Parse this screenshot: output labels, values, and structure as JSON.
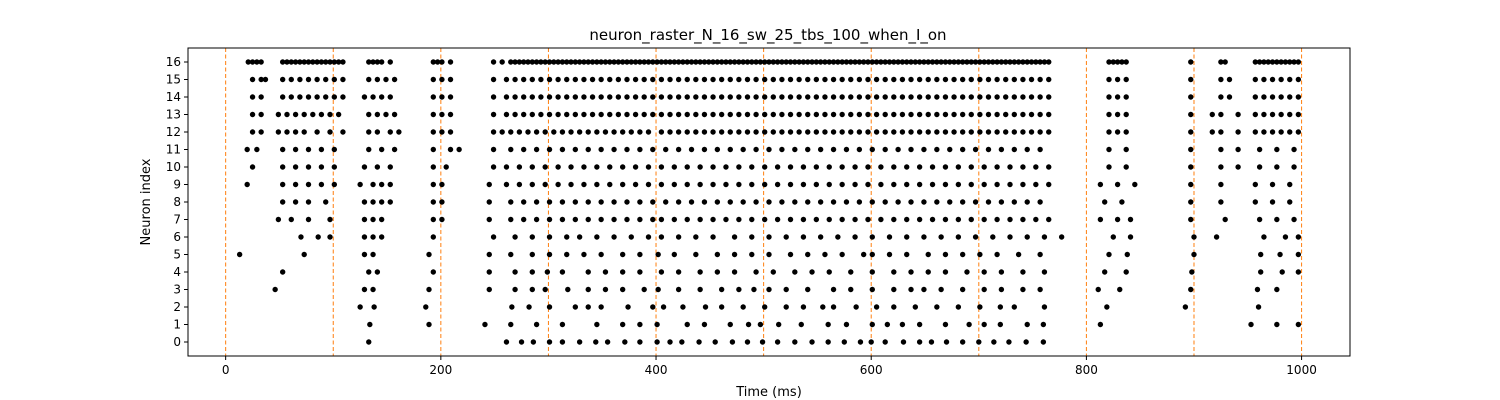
{
  "chart_data": {
    "type": "scatter",
    "title": "neuron_raster_N_16_sw_25_tbs_100_when_I_on",
    "xlabel": "Time (ms)",
    "ylabel": "Neuron index",
    "xlim": [
      -35,
      1045
    ],
    "ylim": [
      -0.8,
      16.8
    ],
    "xticks": [
      0,
      200,
      400,
      600,
      800,
      1000
    ],
    "yticks": [
      0,
      1,
      2,
      3,
      4,
      5,
      6,
      7,
      8,
      9,
      10,
      11,
      12,
      13,
      14,
      15,
      16
    ],
    "grid": false,
    "legend": "none",
    "marker_color": "#000000",
    "vline_color": "#ff7f0e",
    "vlines": [
      0,
      100,
      200,
      300,
      400,
      500,
      600,
      700,
      800,
      900,
      1000
    ],
    "series": [
      {
        "neuron": 0,
        "times": [
          133,
          261,
          275,
          286,
          301,
          313,
          329,
          344,
          355,
          371,
          385,
          401,
          413,
          424,
          440,
          455,
          471,
          485,
          499,
          513,
          529,
          545,
          560,
          575,
          590,
          600,
          613,
          630,
          645,
          656,
          670,
          685,
          700,
          714,
          728,
          744,
          760
        ]
      },
      {
        "neuron": 1,
        "times": [
          134,
          189,
          241,
          265,
          289,
          313,
          345,
          369,
          385,
          401,
          429,
          445,
          469,
          486,
          497,
          514,
          535,
          560,
          577,
          601,
          615,
          629,
          645,
          669,
          691,
          705,
          720,
          745,
          760,
          813,
          953,
          977,
          997
        ]
      },
      {
        "neuron": 2,
        "times": [
          125,
          138,
          186,
          266,
          282,
          301,
          325,
          337,
          349,
          374,
          397,
          407,
          425,
          446,
          461,
          481,
          501,
          521,
          537,
          555,
          565,
          586,
          605,
          621,
          641,
          661,
          681,
          701,
          720,
          733,
          761,
          819,
          892,
          960
        ]
      },
      {
        "neuron": 3,
        "times": [
          46,
          129,
          137,
          189,
          245,
          269,
          285,
          297,
          318,
          337,
          353,
          369,
          389,
          402,
          421,
          441,
          461,
          477,
          491,
          505,
          521,
          541,
          565,
          581,
          601,
          621,
          637,
          649,
          665,
          685,
          705,
          721,
          741,
          757,
          811,
          831,
          897,
          959,
          977
        ]
      },
      {
        "neuron": 4,
        "times": [
          53,
          133,
          141,
          193,
          245,
          269,
          285,
          299,
          313,
          337,
          353,
          369,
          385,
          405,
          421,
          441,
          457,
          473,
          493,
          509,
          529,
          545,
          561,
          581,
          601,
          621,
          637,
          653,
          669,
          689,
          705,
          721,
          741,
          761,
          817,
          837,
          898,
          962,
          982,
          997
        ]
      },
      {
        "neuron": 5,
        "times": [
          13,
          73,
          129,
          137,
          189,
          245,
          265,
          285,
          301,
          317,
          333,
          349,
          369,
          385,
          402,
          417,
          437,
          457,
          473,
          489,
          505,
          525,
          541,
          557,
          573,
          593,
          601,
          617,
          633,
          653,
          669,
          685,
          701,
          717,
          737,
          757,
          821,
          838,
          900,
          962,
          980,
          997
        ]
      },
      {
        "neuron": 6,
        "times": [
          70,
          86,
          97,
          129,
          137,
          145,
          193,
          249,
          269,
          285,
          301,
          317,
          329,
          345,
          361,
          377,
          393,
          405,
          421,
          437,
          453,
          473,
          489,
          505,
          521,
          537,
          553,
          569,
          585,
          601,
          617,
          633,
          649,
          665,
          681,
          697,
          713,
          729,
          745,
          761,
          777,
          825,
          841,
          900,
          921,
          965,
          985,
          997
        ]
      },
      {
        "neuron": 7,
        "times": [
          49,
          61,
          77,
          97,
          129,
          137,
          145,
          193,
          201,
          245,
          265,
          277,
          289,
          301,
          313,
          325,
          337,
          349,
          361,
          373,
          385,
          397,
          405,
          417,
          429,
          441,
          453,
          465,
          477,
          489,
          501,
          513,
          525,
          537,
          549,
          561,
          573,
          585,
          597,
          609,
          621,
          633,
          645,
          657,
          669,
          681,
          693,
          705,
          717,
          729,
          741,
          753,
          765,
          813,
          829,
          841,
          897,
          929,
          961,
          977,
          993
        ]
      },
      {
        "neuron": 8,
        "times": [
          53,
          65,
          77,
          93,
          129,
          137,
          145,
          153,
          193,
          201,
          245,
          265,
          277,
          289,
          301,
          313,
          325,
          337,
          349,
          361,
          373,
          385,
          397,
          409,
          421,
          433,
          445,
          457,
          469,
          481,
          493,
          505,
          517,
          529,
          541,
          553,
          565,
          577,
          589,
          601,
          613,
          625,
          637,
          649,
          661,
          673,
          685,
          697,
          709,
          721,
          733,
          745,
          757,
          817,
          833,
          897,
          925,
          957,
          973,
          989
        ]
      },
      {
        "neuron": 9,
        "times": [
          20,
          53,
          65,
          77,
          89,
          101,
          125,
          137,
          145,
          153,
          193,
          201,
          245,
          261,
          273,
          285,
          297,
          309,
          321,
          333,
          345,
          357,
          369,
          381,
          393,
          405,
          417,
          429,
          441,
          453,
          465,
          477,
          489,
          501,
          513,
          525,
          537,
          549,
          561,
          573,
          585,
          597,
          609,
          621,
          633,
          645,
          657,
          669,
          681,
          693,
          705,
          717,
          729,
          741,
          753,
          765,
          813,
          829,
          845,
          897,
          925,
          957,
          973,
          989
        ]
      },
      {
        "neuron": 10,
        "times": [
          25,
          53,
          65,
          77,
          89,
          101,
          129,
          141,
          153,
          193,
          205,
          249,
          261,
          273,
          285,
          297,
          309,
          321,
          333,
          345,
          357,
          369,
          381,
          393,
          405,
          417,
          429,
          441,
          453,
          465,
          477,
          489,
          501,
          513,
          525,
          537,
          549,
          561,
          573,
          585,
          597,
          609,
          621,
          633,
          645,
          657,
          669,
          681,
          693,
          705,
          717,
          729,
          741,
          753,
          765,
          821,
          837,
          897,
          925,
          941,
          961,
          977,
          993
        ]
      },
      {
        "neuron": 11,
        "times": [
          20,
          29,
          53,
          65,
          77,
          89,
          101,
          133,
          145,
          157,
          193,
          209,
          217,
          249,
          265,
          277,
          289,
          301,
          313,
          325,
          337,
          349,
          361,
          373,
          385,
          397,
          409,
          421,
          433,
          445,
          457,
          469,
          481,
          493,
          505,
          517,
          529,
          541,
          553,
          565,
          577,
          589,
          601,
          613,
          625,
          637,
          649,
          661,
          673,
          685,
          697,
          709,
          721,
          733,
          745,
          757,
          821,
          837,
          897,
          925,
          941,
          961,
          977,
          993
        ]
      },
      {
        "neuron": 12,
        "times": [
          25,
          33,
          49,
          57,
          65,
          73,
          85,
          97,
          109,
          133,
          141,
          153,
          161,
          193,
          201,
          209,
          249,
          257,
          265,
          273,
          281,
          289,
          297,
          305,
          313,
          321,
          329,
          337,
          345,
          353,
          361,
          369,
          377,
          385,
          393,
          405,
          413,
          421,
          429,
          437,
          445,
          453,
          461,
          469,
          477,
          485,
          493,
          501,
          509,
          517,
          525,
          533,
          541,
          549,
          557,
          565,
          573,
          581,
          589,
          597,
          605,
          613,
          621,
          629,
          637,
          645,
          653,
          661,
          669,
          677,
          685,
          693,
          701,
          709,
          717,
          725,
          733,
          741,
          749,
          757,
          765,
          821,
          829,
          837,
          897,
          917,
          925,
          941,
          957,
          965,
          973,
          981,
          989,
          997
        ]
      },
      {
        "neuron": 13,
        "times": [
          25,
          33,
          49,
          57,
          65,
          73,
          81,
          89,
          97,
          105,
          133,
          141,
          149,
          157,
          193,
          201,
          209,
          249,
          261,
          269,
          277,
          285,
          293,
          301,
          309,
          317,
          325,
          333,
          341,
          349,
          357,
          365,
          373,
          381,
          389,
          397,
          405,
          413,
          421,
          429,
          437,
          445,
          453,
          461,
          469,
          477,
          485,
          493,
          501,
          509,
          517,
          525,
          533,
          541,
          549,
          557,
          565,
          573,
          581,
          589,
          597,
          605,
          613,
          621,
          629,
          637,
          645,
          653,
          661,
          669,
          677,
          685,
          693,
          701,
          709,
          717,
          725,
          733,
          741,
          749,
          757,
          765,
          821,
          829,
          837,
          897,
          917,
          925,
          941,
          957,
          965,
          973,
          981,
          989,
          997
        ]
      },
      {
        "neuron": 14,
        "times": [
          25,
          33,
          53,
          61,
          69,
          77,
          85,
          93,
          101,
          109,
          129,
          137,
          145,
          153,
          193,
          201,
          209,
          249,
          261,
          269,
          277,
          285,
          293,
          301,
          309,
          317,
          325,
          333,
          341,
          349,
          357,
          365,
          373,
          381,
          389,
          397,
          405,
          413,
          421,
          429,
          437,
          445,
          453,
          461,
          469,
          477,
          485,
          493,
          501,
          509,
          517,
          525,
          533,
          541,
          549,
          557,
          565,
          573,
          581,
          589,
          597,
          605,
          613,
          621,
          629,
          637,
          645,
          653,
          661,
          669,
          677,
          685,
          693,
          701,
          709,
          717,
          725,
          733,
          741,
          749,
          757,
          765,
          821,
          829,
          837,
          897,
          925,
          933,
          957,
          965,
          973,
          981,
          989,
          997
        ]
      },
      {
        "neuron": 15,
        "times": [
          25,
          33,
          37,
          53,
          61,
          69,
          77,
          85,
          93,
          101,
          109,
          133,
          141,
          149,
          157,
          193,
          201,
          209,
          249,
          261,
          269,
          277,
          285,
          293,
          301,
          309,
          317,
          325,
          333,
          341,
          349,
          357,
          365,
          373,
          381,
          389,
          397,
          405,
          413,
          421,
          429,
          437,
          445,
          453,
          461,
          469,
          477,
          485,
          493,
          501,
          509,
          517,
          525,
          533,
          541,
          549,
          557,
          565,
          573,
          581,
          589,
          597,
          605,
          613,
          621,
          629,
          637,
          645,
          653,
          661,
          669,
          677,
          685,
          693,
          701,
          709,
          717,
          725,
          733,
          741,
          749,
          757,
          765,
          821,
          829,
          837,
          897,
          925,
          933,
          957,
          965,
          973,
          981,
          989,
          997
        ]
      },
      {
        "neuron": 16,
        "times": [
          21,
          25,
          29,
          33,
          53,
          57,
          61,
          65,
          69,
          73,
          77,
          81,
          85,
          89,
          93,
          97,
          101,
          105,
          109,
          133,
          137,
          141,
          145,
          153,
          193,
          197,
          201,
          209,
          249,
          257,
          265,
          269,
          273,
          277,
          281,
          285,
          289,
          293,
          297,
          301,
          305,
          309,
          313,
          317,
          321,
          325,
          329,
          333,
          337,
          341,
          345,
          349,
          353,
          357,
          361,
          365,
          369,
          373,
          377,
          381,
          385,
          389,
          393,
          397,
          401,
          405,
          409,
          413,
          417,
          421,
          425,
          429,
          433,
          437,
          441,
          445,
          449,
          453,
          457,
          461,
          465,
          469,
          473,
          477,
          481,
          485,
          489,
          493,
          497,
          501,
          505,
          509,
          513,
          517,
          521,
          525,
          529,
          533,
          537,
          541,
          545,
          549,
          553,
          557,
          561,
          565,
          569,
          573,
          577,
          581,
          585,
          589,
          593,
          597,
          601,
          605,
          609,
          613,
          617,
          621,
          625,
          629,
          633,
          637,
          641,
          645,
          649,
          653,
          657,
          661,
          665,
          669,
          673,
          677,
          681,
          685,
          689,
          693,
          697,
          701,
          705,
          709,
          713,
          717,
          721,
          725,
          729,
          733,
          737,
          741,
          745,
          749,
          753,
          757,
          761,
          765,
          821,
          825,
          829,
          833,
          837,
          897,
          925,
          929,
          957,
          961,
          965,
          969,
          973,
          977,
          981,
          985,
          989,
          993,
          997
        ]
      }
    ]
  }
}
